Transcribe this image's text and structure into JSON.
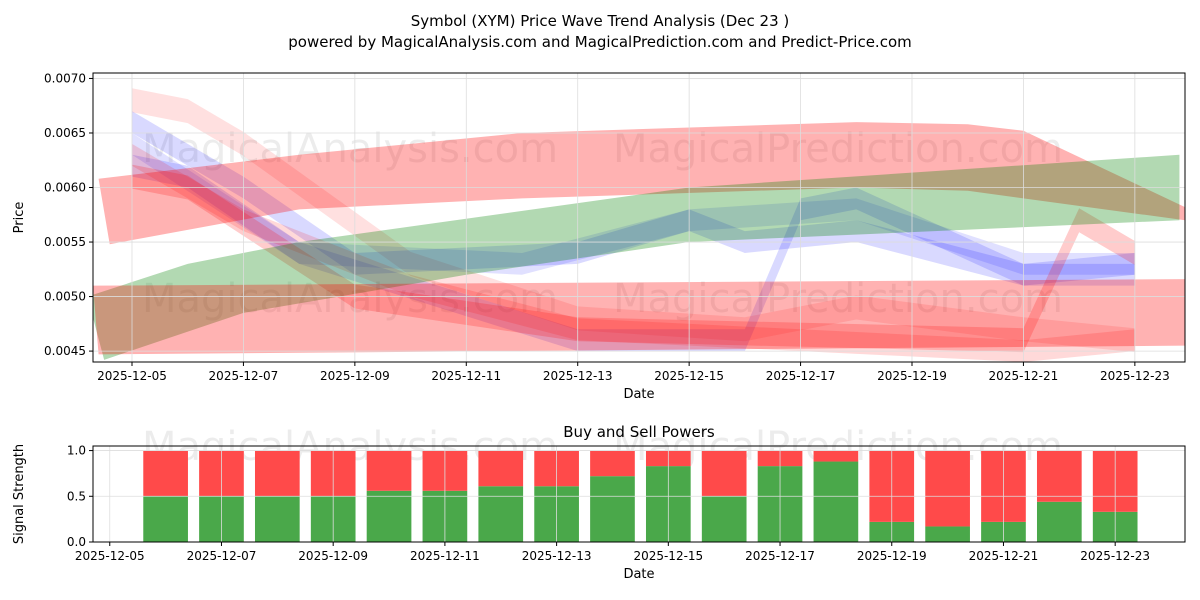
{
  "title_line1": "Symbol (XYM) Price Wave Trend Analysis (Dec 23 )",
  "title_line2": "powered by MagicalAnalysis.com and MagicalPrediction.com and Predict-Price.com",
  "watermarks": [
    "MagicalAnalysis.com",
    "MagicalPrediction.com"
  ],
  "chart_data": [
    {
      "type": "area",
      "title": "",
      "xlabel": "Date",
      "ylabel": "Price",
      "xlim_day": [
        4.3,
        23.9
      ],
      "ylim": [
        0.0044,
        0.00705
      ],
      "x_ticks": [
        "2025-12-05",
        "2025-12-07",
        "2025-12-09",
        "2025-12-11",
        "2025-12-13",
        "2025-12-15",
        "2025-12-17",
        "2025-12-19",
        "2025-12-21",
        "2025-12-23"
      ],
      "x_tick_days": [
        5,
        7,
        9,
        11,
        13,
        15,
        17,
        19,
        21,
        23
      ],
      "y_ticks": [
        "0.0045",
        "0.0050",
        "0.0055",
        "0.0060",
        "0.0065",
        "0.0070"
      ],
      "y_tick_values": [
        0.0045,
        0.005,
        0.0055,
        0.006,
        0.0065,
        0.007
      ],
      "bands": [
        {
          "name": "red-upper-band",
          "color": "#ff0000",
          "opacity": 0.3,
          "upper": [
            [
              4.4,
              0.00608
            ],
            [
              8,
              0.0063
            ],
            [
              12,
              0.0065
            ],
            [
              18,
              0.0066
            ],
            [
              20,
              0.00658
            ],
            [
              21,
              0.00652
            ],
            [
              23.9,
              0.00582
            ]
          ],
          "lower": [
            [
              4.6,
              0.00548
            ],
            [
              8,
              0.0058
            ],
            [
              12,
              0.0059
            ],
            [
              18,
              0.006
            ],
            [
              20,
              0.00597
            ],
            [
              21,
              0.0059
            ],
            [
              23.9,
              0.0057
            ]
          ]
        },
        {
          "name": "green-band",
          "color": "#008000",
          "opacity": 0.3,
          "upper": [
            [
              4.2,
              0.005
            ],
            [
              6,
              0.0053
            ],
            [
              8,
              0.0055
            ],
            [
              15,
              0.006
            ],
            [
              23.8,
              0.0063
            ]
          ],
          "lower": [
            [
              4.5,
              0.00442
            ],
            [
              7,
              0.00485
            ],
            [
              11,
              0.0052
            ],
            [
              15,
              0.0055
            ],
            [
              23.8,
              0.0057
            ]
          ]
        },
        {
          "name": "red-lower-band",
          "color": "#ff0000",
          "opacity": 0.3,
          "upper": [
            [
              4.3,
              0.0051
            ],
            [
              23.9,
              0.00516
            ]
          ],
          "lower": [
            [
              4.4,
              0.00447
            ],
            [
              23.9,
              0.00455
            ]
          ]
        }
      ],
      "waves": [
        {
          "color": "#ff0000",
          "opacity": 0.12,
          "width": 0.00022,
          "points": [
            [
              5,
              0.0068
            ],
            [
              6,
              0.0067
            ],
            [
              7,
              0.0064
            ],
            [
              10,
              0.0053
            ],
            [
              13,
              0.0048
            ],
            [
              16,
              0.0047
            ],
            [
              18,
              0.0049
            ],
            [
              21,
              0.0047
            ],
            [
              23,
              0.0046
            ]
          ]
        },
        {
          "color": "#0000ff",
          "opacity": 0.15,
          "width": 0.0002,
          "points": [
            [
              5,
              0.0066
            ],
            [
              7,
              0.006
            ],
            [
              9,
              0.0053
            ],
            [
              13,
              0.0054
            ],
            [
              15,
              0.0057
            ],
            [
              16,
              0.0055
            ],
            [
              18,
              0.0056
            ],
            [
              21,
              0.0052
            ],
            [
              23,
              0.0053
            ]
          ]
        },
        {
          "color": "#0000ff",
          "opacity": 0.15,
          "width": 0.0002,
          "points": [
            [
              5,
              0.0062
            ],
            [
              6,
              0.0061
            ],
            [
              8,
              0.0054
            ],
            [
              13,
              0.0046
            ],
            [
              16,
              0.0046
            ],
            [
              17,
              0.0058
            ],
            [
              18,
              0.0059
            ],
            [
              21,
              0.0052
            ],
            [
              23,
              0.0052
            ]
          ]
        },
        {
          "color": "#0000ff",
          "opacity": 0.12,
          "width": 0.0002,
          "points": [
            [
              5,
              0.0064
            ],
            [
              8,
              0.0054
            ],
            [
              12,
              0.0053
            ],
            [
              15,
              0.0057
            ],
            [
              18,
              0.0058
            ],
            [
              21,
              0.0053
            ],
            [
              23,
              0.0053
            ]
          ]
        },
        {
          "color": "#ff0000",
          "opacity": 0.2,
          "width": 0.00022,
          "points": [
            [
              5,
              0.0061
            ],
            [
              6,
              0.006
            ],
            [
              9,
              0.005
            ],
            [
              13,
              0.0047
            ],
            [
              21,
              0.0046
            ],
            [
              22,
              0.0057
            ],
            [
              23,
              0.0054
            ]
          ]
        },
        {
          "color": "#ff0000",
          "opacity": 0.15,
          "width": 0.0002,
          "points": [
            [
              5,
              0.0063
            ],
            [
              7,
              0.0057
            ],
            [
              10,
              0.0051
            ],
            [
              13,
              0.0047
            ],
            [
              17,
              0.0046
            ],
            [
              21,
              0.0045
            ],
            [
              23,
              0.0046
            ]
          ]
        }
      ]
    },
    {
      "type": "bar",
      "title": "Buy and Sell Powers",
      "xlabel": "Date",
      "ylabel": "Signal Strength",
      "ylim": [
        0,
        1.05
      ],
      "xlim_day": [
        4.7,
        24.25
      ],
      "x_ticks": [
        "2025-12-05",
        "2025-12-07",
        "2025-12-09",
        "2025-12-11",
        "2025-12-13",
        "2025-12-15",
        "2025-12-17",
        "2025-12-19",
        "2025-12-21",
        "2025-12-23"
      ],
      "x_tick_days": [
        5,
        7,
        9,
        11,
        13,
        15,
        17,
        19,
        21,
        23
      ],
      "y_ticks": [
        "0.0",
        "0.5",
        "1.0"
      ],
      "y_tick_values": [
        0,
        0.5,
        1.0
      ],
      "bar_days": [
        6,
        7,
        8,
        9,
        10,
        11,
        12,
        13,
        14,
        15,
        16,
        17,
        18,
        19,
        20,
        21,
        22,
        23
      ],
      "series": [
        {
          "name": "Buy",
          "color": "#4aa84a",
          "values": [
            0.5,
            0.5,
            0.5,
            0.5,
            0.56,
            0.56,
            0.61,
            0.61,
            0.72,
            0.83,
            0.5,
            0.83,
            0.88,
            0.22,
            0.17,
            0.22,
            0.44,
            0.33
          ]
        },
        {
          "name": "Sell",
          "color": "#ff4a4a",
          "values": [
            0.5,
            0.5,
            0.5,
            0.5,
            0.44,
            0.44,
            0.39,
            0.39,
            0.28,
            0.17,
            0.5,
            0.17,
            0.12,
            0.78,
            0.83,
            0.78,
            0.56,
            0.67
          ]
        }
      ]
    }
  ]
}
